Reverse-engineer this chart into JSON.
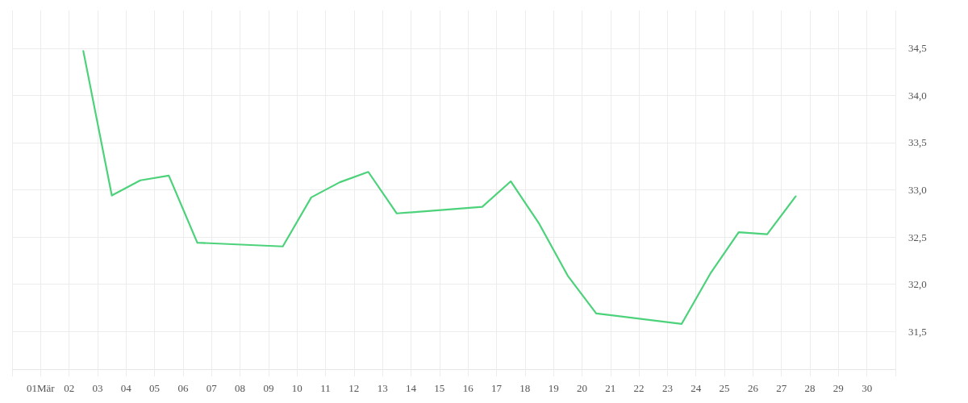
{
  "chart_data": {
    "type": "line",
    "color": "#4cd27a",
    "marker": "none",
    "grid": true,
    "x": [
      "--03-02T12:00",
      "--03-03T12:00",
      "--03-04T12:00",
      "--03-05T12:00",
      "--03-06T12:00",
      "--03-09T12:00",
      "--03-10T12:00",
      "--03-11T12:00",
      "--03-12T12:00",
      "--03-13T12:00",
      "--03-16T12:00",
      "--03-17T12:00",
      "--03-18T12:00",
      "--03-19T12:00",
      "--03-20T12:00",
      "--03-23T12:00",
      "--03-24T12:00",
      "--03-25T12:00",
      "--03-26T12:00",
      "--03-27T12:00"
    ],
    "values": [
      34.47,
      32.94,
      33.1,
      33.15,
      32.44,
      32.4,
      32.92,
      33.08,
      33.19,
      32.75,
      32.82,
      33.09,
      32.64,
      32.09,
      31.69,
      31.58,
      32.11,
      32.55,
      32.53,
      32.93
    ],
    "xlim": [
      "--02-29",
      "--03-31"
    ],
    "xticks": [
      {
        "value": "--02-29",
        "label": null
      },
      {
        "value": "--03-01",
        "label": "01Mär"
      },
      {
        "value": "--03-02",
        "label": "02"
      },
      {
        "value": "--03-03",
        "label": "03"
      },
      {
        "value": "--03-04",
        "label": "04"
      },
      {
        "value": "--03-05",
        "label": "05"
      },
      {
        "value": "--03-06",
        "label": "06"
      },
      {
        "value": "--03-07",
        "label": "07"
      },
      {
        "value": "--03-08",
        "label": "08"
      },
      {
        "value": "--03-09",
        "label": "09"
      },
      {
        "value": "--03-10",
        "label": "10"
      },
      {
        "value": "--03-11",
        "label": "11"
      },
      {
        "value": "--03-12",
        "label": "12"
      },
      {
        "value": "--03-13",
        "label": "13"
      },
      {
        "value": "--03-14",
        "label": "14"
      },
      {
        "value": "--03-15",
        "label": "15"
      },
      {
        "value": "--03-16",
        "label": "16"
      },
      {
        "value": "--03-17",
        "label": "17"
      },
      {
        "value": "--03-18",
        "label": "18"
      },
      {
        "value": "--03-19",
        "label": "19"
      },
      {
        "value": "--03-20",
        "label": "20"
      },
      {
        "value": "--03-21",
        "label": "21"
      },
      {
        "value": "--03-22",
        "label": "22"
      },
      {
        "value": "--03-23",
        "label": "23"
      },
      {
        "value": "--03-24",
        "label": "24"
      },
      {
        "value": "--03-25",
        "label": "25"
      },
      {
        "value": "--03-26",
        "label": "26"
      },
      {
        "value": "--03-27",
        "label": "27"
      },
      {
        "value": "--03-28",
        "label": "28"
      },
      {
        "value": "--03-29",
        "label": "29"
      },
      {
        "value": "--03-30",
        "label": "30"
      },
      {
        "value": "--03-31",
        "label": null
      }
    ],
    "ylim": [
      31.1,
      34.9
    ],
    "yticks": [
      {
        "value": 31.5,
        "label": "31,5"
      },
      {
        "value": 32.0,
        "label": "32,0"
      },
      {
        "value": 32.5,
        "label": "32,5"
      },
      {
        "value": 33.0,
        "label": "33,0"
      },
      {
        "value": 33.5,
        "label": "33,5"
      },
      {
        "value": 34.0,
        "label": "34,0"
      },
      {
        "value": 34.5,
        "label": "34,5"
      }
    ]
  }
}
